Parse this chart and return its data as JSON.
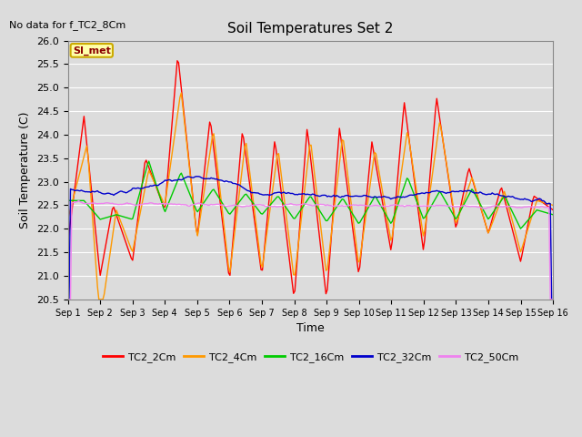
{
  "title": "Soil Temperatures Set 2",
  "no_data_text": "No data for f_TC2_8Cm",
  "si_met_label": "SI_met",
  "xlabel": "Time",
  "ylabel": "Soil Temperature (C)",
  "ylim": [
    20.5,
    26.0
  ],
  "yticks": [
    20.5,
    21.0,
    21.5,
    22.0,
    22.5,
    23.0,
    23.5,
    24.0,
    24.5,
    25.0,
    25.5,
    26.0
  ],
  "x_tick_labels": [
    "Sep 1",
    "Sep 2",
    "Sep 3",
    "Sep 4",
    "Sep 5",
    "Sep 6",
    "Sep 7",
    "Sep 8",
    "Sep 9",
    "Sep 10",
    "Sep 11",
    "Sep 12",
    "Sep 13",
    "Sep 14",
    "Sep 15",
    "Sep 16"
  ],
  "background_color": "#dcdcdc",
  "plot_bg_color": "#dcdcdc",
  "grid_color": "#ffffff",
  "line_colors": {
    "TC2_2Cm": "#ff0000",
    "TC2_4Cm": "#ff9900",
    "TC2_16Cm": "#00cc00",
    "TC2_32Cm": "#0000cc",
    "TC2_50Cm": "#ee82ee"
  },
  "legend_labels": [
    "TC2_2Cm",
    "TC2_4Cm",
    "TC2_16Cm",
    "TC2_32Cm",
    "TC2_50Cm"
  ]
}
